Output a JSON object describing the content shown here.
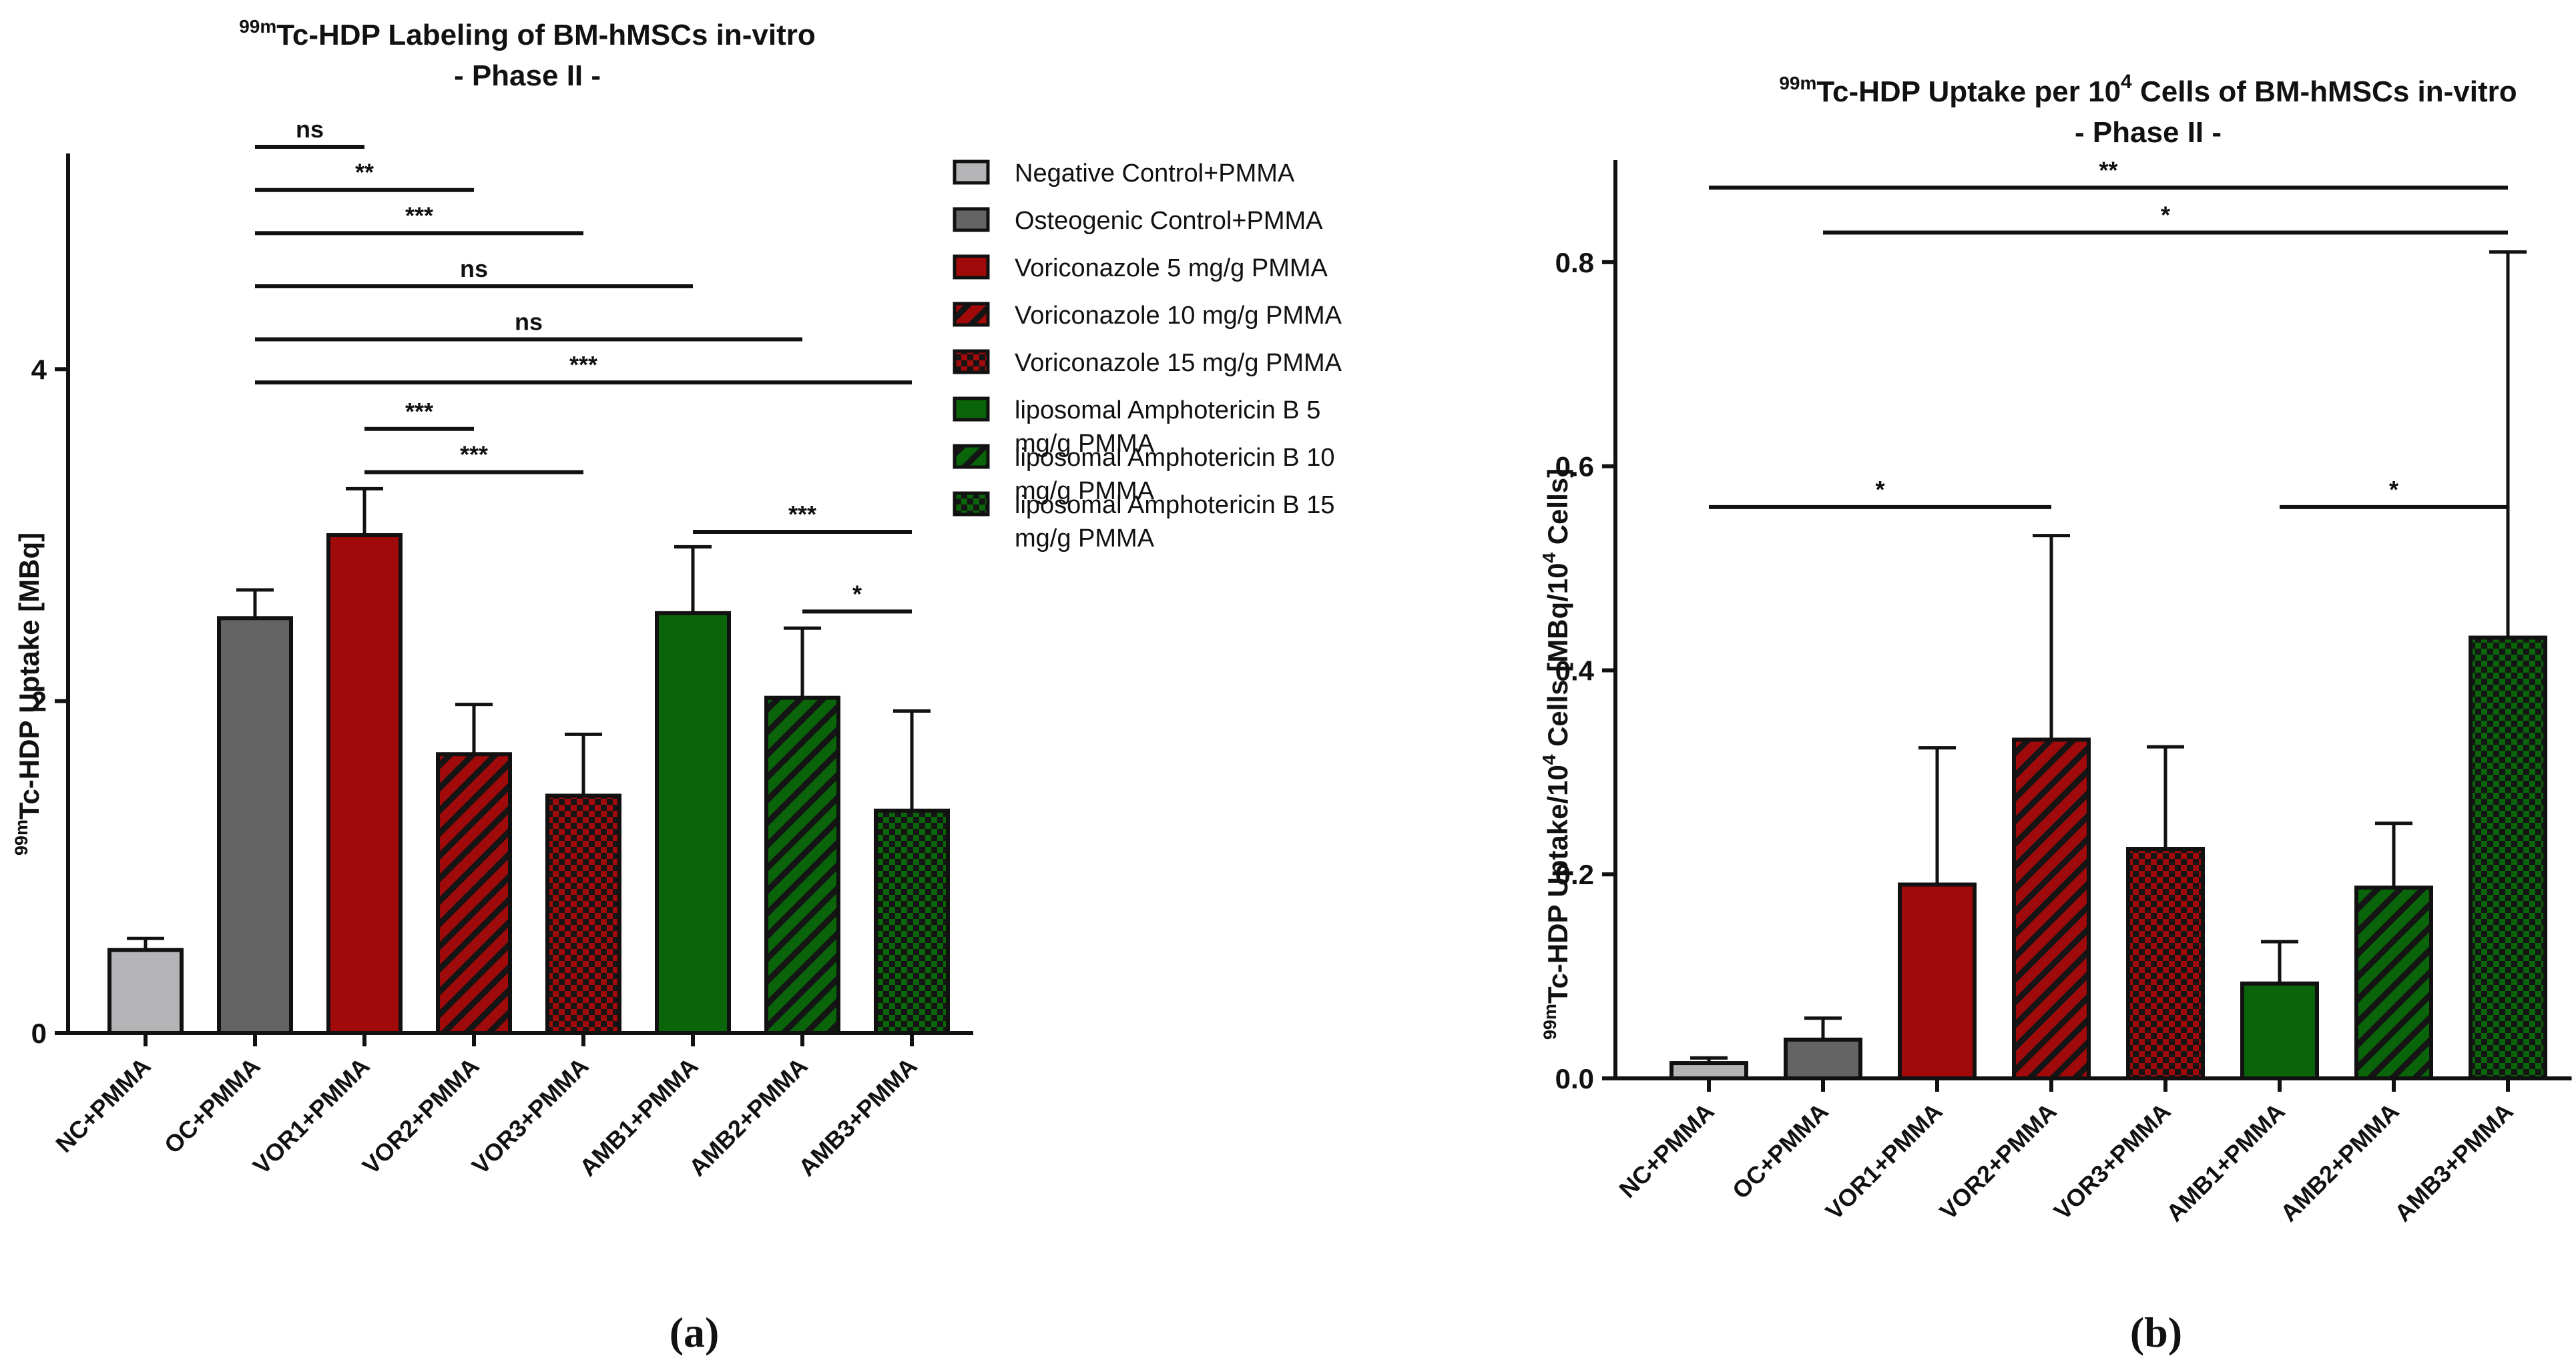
{
  "chart_data": [
    {
      "id": "a",
      "type": "bar",
      "panel_label": "(a)",
      "title": {
        "sup": "99m",
        "main": "Tc-HDP Labeling of BM-hMSCs in-vitro",
        "line2": "- Phase II -"
      },
      "ylabel": {
        "sup": "99m",
        "main": "Tc-HDP Uptake [MBq]"
      },
      "xlabel": "",
      "ylim": [
        0,
        5.3
      ],
      "yticks": [
        0,
        2,
        4
      ],
      "categories": [
        "NC+PMMA",
        "OC+PMMA",
        "VOR1+PMMA",
        "VOR2+PMMA",
        "VOR3+PMMA",
        "AMB1+PMMA",
        "AMB2+PMMA",
        "AMB3+PMMA"
      ],
      "values": [
        0.5,
        2.5,
        3.0,
        1.68,
        1.43,
        2.53,
        2.02,
        1.34
      ],
      "errors": [
        0.07,
        0.17,
        0.28,
        0.3,
        0.37,
        0.4,
        0.42,
        0.6
      ],
      "fills": [
        "light-gray",
        "dark-gray",
        "red",
        "red-diagonal",
        "red-check",
        "green",
        "green-diagonal",
        "green-check"
      ],
      "significance": [
        {
          "from": 1,
          "to": 2,
          "level": 5.34,
          "label": "ns"
        },
        {
          "from": 1,
          "to": 3,
          "level": 5.08,
          "label": "**"
        },
        {
          "from": 1,
          "to": 4,
          "level": 4.82,
          "label": "***"
        },
        {
          "from": 1,
          "to": 5,
          "level": 4.5,
          "label": "ns"
        },
        {
          "from": 1,
          "to": 6,
          "level": 4.18,
          "label": "ns"
        },
        {
          "from": 1,
          "to": 7,
          "level": 3.92,
          "label": "***"
        },
        {
          "from": 2,
          "to": 3,
          "level": 3.64,
          "label": "***"
        },
        {
          "from": 2,
          "to": 4,
          "level": 3.38,
          "label": "***"
        },
        {
          "from": 5,
          "to": 7,
          "level": 3.02,
          "label": "***"
        },
        {
          "from": 6,
          "to": 7,
          "level": 2.54,
          "label": "*"
        }
      ],
      "legend": [
        {
          "lines": [
            "Negative Control+PMMA"
          ],
          "fill": "light-gray"
        },
        {
          "lines": [
            "Osteogenic Control+PMMA"
          ],
          "fill": "dark-gray"
        },
        {
          "lines": [
            "Voriconazole 5 mg/g PMMA"
          ],
          "fill": "red"
        },
        {
          "lines": [
            "Voriconazole 10 mg/g PMMA"
          ],
          "fill": "red-diagonal"
        },
        {
          "lines": [
            "Voriconazole 15 mg/g PMMA"
          ],
          "fill": "red-check"
        },
        {
          "lines": [
            "liposomal Amphotericin B 5",
            "mg/g PMMA"
          ],
          "fill": "green"
        },
        {
          "lines": [
            "liposomal Amphotericin B 10",
            "mg/g PMMA"
          ],
          "fill": "green-diagonal"
        },
        {
          "lines": [
            "liposomal Amphotericin B 15",
            "mg/g PMMA"
          ],
          "fill": "green-check"
        }
      ],
      "legend_position": "right"
    },
    {
      "id": "b",
      "type": "bar",
      "panel_label": "(b)",
      "title": {
        "sup": "99m",
        "pre": "Tc-HDP Uptake per 10",
        "pow": "4",
        "post": " Cells of BM-hMSCs in-vitro",
        "line2": "- Phase II -"
      },
      "ylabel": {
        "sup": "99m",
        "pre": "Tc-HDP Uptake/10",
        "pow": "4",
        "mid": " Cells [MBq/10",
        "pow2": "4",
        "post": " Cells]"
      },
      "xlabel": "",
      "ylim": [
        0,
        0.9
      ],
      "yticks": [
        0.0,
        0.2,
        0.4,
        0.6,
        0.8
      ],
      "ytick_labels": [
        "0.0",
        "0.2",
        "0.4",
        "0.6",
        "0.8"
      ],
      "categories": [
        "NC+PMMA",
        "OC+PMMA",
        "VOR1+PMMA",
        "VOR2+PMMA",
        "VOR3+PMMA",
        "AMB1+PMMA",
        "AMB2+PMMA",
        "AMB3+PMMA"
      ],
      "values": [
        0.015,
        0.038,
        0.19,
        0.332,
        0.225,
        0.093,
        0.187,
        0.432
      ],
      "errors": [
        0.005,
        0.021,
        0.134,
        0.2,
        0.1,
        0.041,
        0.063,
        0.378
      ],
      "fills": [
        "light-gray",
        "dark-gray",
        "red",
        "red-diagonal",
        "red-check",
        "green",
        "green-diagonal",
        "green-check"
      ],
      "significance": [
        {
          "from": 0,
          "to": 7,
          "level": 0.873,
          "label": "**"
        },
        {
          "from": 1,
          "to": 7,
          "level": 0.829,
          "label": "*"
        },
        {
          "from": 0,
          "to": 3,
          "level": 0.56,
          "label": "*"
        },
        {
          "from": 5,
          "to": 7,
          "level": 0.56,
          "label": "*"
        }
      ]
    }
  ],
  "colors": {
    "light-gray": "#b4b4b6",
    "dark-gray": "#646464",
    "red": "#a00a0a",
    "green": "#0a640a",
    "axis": "#111111"
  }
}
